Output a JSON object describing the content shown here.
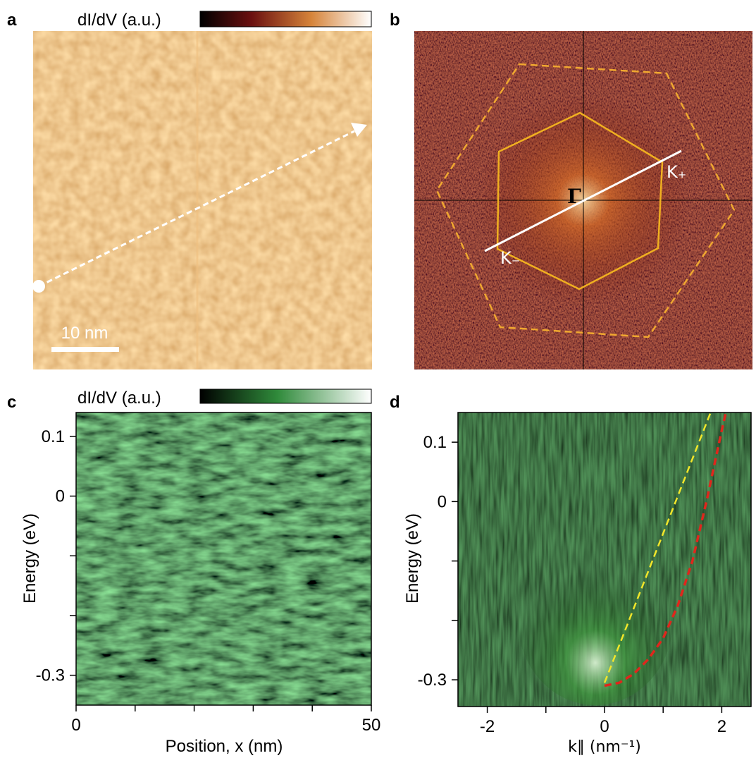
{
  "chart_data": [
    {
      "type": "image",
      "label": "a",
      "colorbar_label": "dI/dV (a.u.)",
      "scale_bar": "10 nm"
    },
    {
      "type": "image",
      "label": "b",
      "annotations": [
        "Γ",
        "K₊",
        "K₋"
      ]
    },
    {
      "type": "heatmap",
      "label": "c",
      "colorbar_label": "dI/dV (a.u.)",
      "xlabel": "Position, x (nm)",
      "ylabel": "Energy (eV)",
      "xlim": [
        0,
        50
      ],
      "xticks": [
        0,
        50
      ],
      "xminor": [
        10,
        20,
        30,
        40
      ],
      "ylim": [
        -0.35,
        0.14
      ],
      "yticks": [
        0.1,
        0,
        -0.3
      ],
      "yminor": [
        -0.1,
        -0.2
      ]
    },
    {
      "type": "heatmap",
      "label": "d",
      "xlabel": "k∥ (nm⁻¹)",
      "ylabel": "Energy (eV)",
      "xlim": [
        -2.5,
        2.5
      ],
      "xticks": [
        -2,
        0,
        2
      ],
      "xminor": [
        -1,
        1
      ],
      "ylim": [
        -0.345,
        0.15
      ],
      "yticks": [
        0.1,
        0,
        -0.3
      ],
      "yminor": [
        -0.1,
        -0.2
      ],
      "series": [
        {
          "color": "#f2e62a",
          "x": [
            0,
            1.81
          ],
          "values": [
            -0.305,
            0.15
          ]
        },
        {
          "color": "#e0261c",
          "x": [
            0,
            0.25,
            0.5,
            0.75,
            1,
            1.25,
            1.5,
            1.75,
            2,
            2.07
          ],
          "values": [
            -0.31,
            -0.305,
            -0.29,
            -0.265,
            -0.23,
            -0.175,
            -0.1,
            0.005,
            0.12,
            0.15
          ]
        }
      ]
    }
  ]
}
